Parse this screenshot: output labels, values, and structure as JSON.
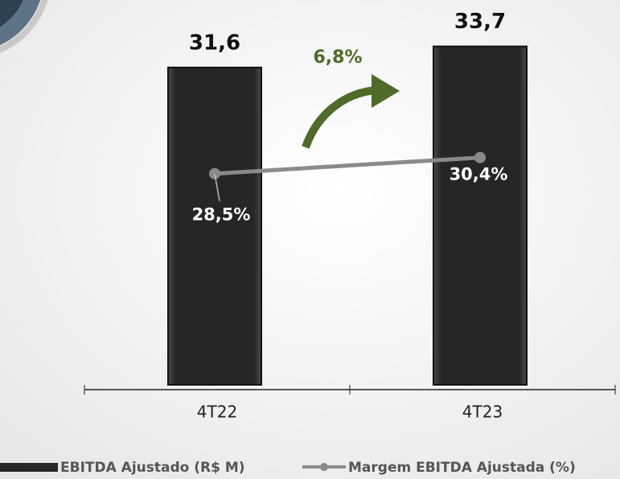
{
  "chart_data": {
    "type": "bar",
    "categories": [
      "4T22",
      "4T23"
    ],
    "series": [
      {
        "name": "EBITDA Ajustado (R$ M)",
        "type": "bar",
        "color": "#262626",
        "values": [
          31.6,
          33.7
        ],
        "value_labels": [
          "31,6",
          "33,7"
        ]
      },
      {
        "name": "Margem EBITDA Ajustada (%)",
        "type": "line",
        "axis": "y2",
        "color": "#8a8a8a",
        "values": [
          28.5,
          30.4
        ],
        "value_labels": [
          "28,5%",
          "30,4%"
        ]
      }
    ],
    "ylim": [
      0,
      38
    ],
    "y2lim": [
      3.6,
      48.6
    ],
    "annotations": [
      {
        "text": "6,8%",
        "color": "#4e6b2a"
      }
    ]
  }
}
